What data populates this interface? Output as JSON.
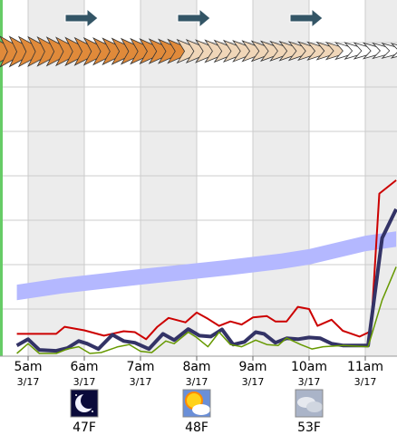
{
  "chart_data": {
    "type": "line",
    "x": [
      "5am",
      "6am",
      "7am",
      "8am",
      "9am",
      "10am",
      "11am"
    ],
    "dates": [
      "3/17",
      "3/17",
      "3/17",
      "3/17",
      "3/17",
      "3/17",
      "3/17"
    ],
    "grid": true,
    "colors": {
      "red": "#cc0000",
      "navy": "#333366",
      "green": "#669900",
      "band": "#b4b8ff",
      "grid": "#cccccc",
      "shade": "#ececec",
      "left_axis": "#66cc66",
      "wind_arrow": "#335566",
      "wind_barb": "#e08a3a"
    },
    "series": [
      {
        "color": "red",
        "values": [
          [
            -0.2,
            0.44
          ],
          [
            0.5,
            0.44
          ],
          [
            0.65,
            0.6
          ],
          [
            1.0,
            0.52
          ],
          [
            1.35,
            0.4
          ],
          [
            1.7,
            0.5
          ],
          [
            1.9,
            0.48
          ],
          [
            2.1,
            0.32
          ],
          [
            2.3,
            0.6
          ],
          [
            2.5,
            0.8
          ],
          [
            2.8,
            0.7
          ],
          [
            3.0,
            0.92
          ],
          [
            3.2,
            0.78
          ],
          [
            3.4,
            0.62
          ],
          [
            3.6,
            0.72
          ],
          [
            3.8,
            0.65
          ],
          [
            4.0,
            0.81
          ],
          [
            4.25,
            0.84
          ],
          [
            4.4,
            0.72
          ],
          [
            4.6,
            0.72
          ],
          [
            4.8,
            1.05
          ],
          [
            5.0,
            1.0
          ],
          [
            5.15,
            0.62
          ],
          [
            5.4,
            0.76
          ],
          [
            5.6,
            0.51
          ],
          [
            5.9,
            0.38
          ],
          [
            6.1,
            0.5
          ],
          [
            6.25,
            3.6
          ],
          [
            6.55,
            3.9
          ]
        ]
      },
      {
        "color": "navy",
        "values": [
          [
            -0.2,
            0.18
          ],
          [
            0.0,
            0.32
          ],
          [
            0.2,
            0.08
          ],
          [
            0.5,
            0.06
          ],
          [
            0.7,
            0.12
          ],
          [
            0.9,
            0.28
          ],
          [
            1.05,
            0.22
          ],
          [
            1.25,
            0.1
          ],
          [
            1.5,
            0.42
          ],
          [
            1.7,
            0.28
          ],
          [
            1.9,
            0.24
          ],
          [
            2.15,
            0.1
          ],
          [
            2.4,
            0.44
          ],
          [
            2.6,
            0.3
          ],
          [
            2.85,
            0.55
          ],
          [
            3.05,
            0.4
          ],
          [
            3.25,
            0.38
          ],
          [
            3.45,
            0.54
          ],
          [
            3.65,
            0.2
          ],
          [
            3.85,
            0.26
          ],
          [
            4.05,
            0.48
          ],
          [
            4.2,
            0.44
          ],
          [
            4.4,
            0.24
          ],
          [
            4.6,
            0.34
          ],
          [
            4.8,
            0.32
          ],
          [
            5.0,
            0.36
          ],
          [
            5.2,
            0.34
          ],
          [
            5.4,
            0.22
          ],
          [
            5.6,
            0.18
          ],
          [
            5.8,
            0.18
          ],
          [
            6.05,
            0.18
          ],
          [
            6.3,
            2.6
          ],
          [
            6.55,
            3.25
          ]
        ]
      },
      {
        "color": "green",
        "values": [
          [
            -0.2,
            0.0
          ],
          [
            0.0,
            0.22
          ],
          [
            0.2,
            0.0
          ],
          [
            0.5,
            0.0
          ],
          [
            0.7,
            0.1
          ],
          [
            0.9,
            0.15
          ],
          [
            1.1,
            0.0
          ],
          [
            1.3,
            0.02
          ],
          [
            1.6,
            0.15
          ],
          [
            1.8,
            0.2
          ],
          [
            2.0,
            0.05
          ],
          [
            2.2,
            0.02
          ],
          [
            2.45,
            0.28
          ],
          [
            2.6,
            0.22
          ],
          [
            2.85,
            0.48
          ],
          [
            3.0,
            0.36
          ],
          [
            3.2,
            0.15
          ],
          [
            3.4,
            0.48
          ],
          [
            3.6,
            0.2
          ],
          [
            3.8,
            0.15
          ],
          [
            4.05,
            0.3
          ],
          [
            4.25,
            0.2
          ],
          [
            4.45,
            0.18
          ],
          [
            4.6,
            0.35
          ],
          [
            4.85,
            0.2
          ],
          [
            5.05,
            0.1
          ],
          [
            5.25,
            0.15
          ],
          [
            5.6,
            0.18
          ],
          [
            6.05,
            0.15
          ],
          [
            6.3,
            1.2
          ],
          [
            6.55,
            1.95
          ]
        ]
      }
    ],
    "band": {
      "x": [
        -0.2,
        0.6,
        2.0,
        3.5,
        4.5,
        5.0,
        5.5,
        6.0,
        6.55
      ],
      "lo": [
        1.2,
        1.35,
        1.55,
        1.75,
        1.9,
        2.0,
        2.15,
        2.3,
        2.4
      ],
      "hi": [
        1.55,
        1.7,
        1.9,
        2.1,
        2.25,
        2.35,
        2.5,
        2.65,
        2.75
      ]
    },
    "wind_arrow_hours": [
      0.5,
      2.5,
      4.5
    ],
    "wind_barbs_count": 44,
    "forecast_icons": [
      {
        "hour": 1,
        "icon": "night-moon-icon",
        "temp": "47F"
      },
      {
        "hour": 3,
        "icon": "sun-cloud-icon",
        "temp": "48F"
      },
      {
        "hour": 5,
        "icon": "cloud-icon",
        "temp": "53F"
      }
    ]
  }
}
